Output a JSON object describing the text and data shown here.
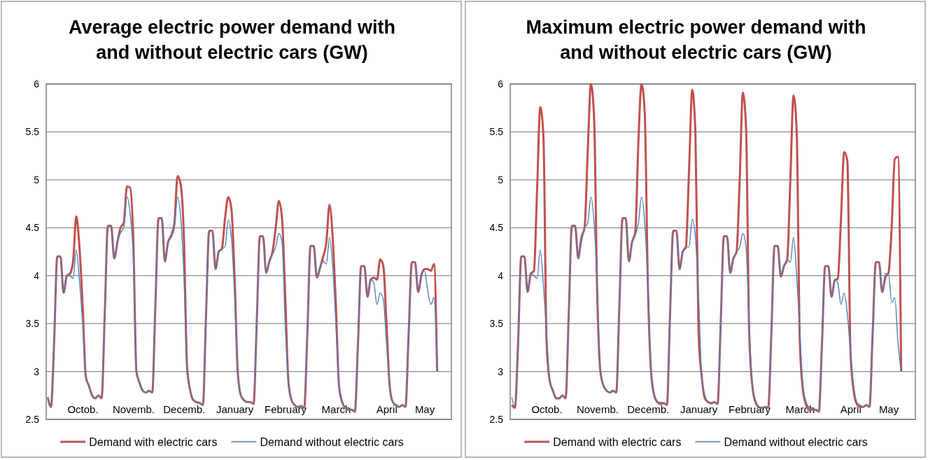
{
  "chart_data": [
    {
      "type": "line",
      "title": "Average electric power demand with and without electric cars (GW)",
      "categories": [
        null,
        null,
        null,
        null,
        null,
        null,
        null,
        null,
        null,
        null,
        null,
        "Octob.",
        null,
        null,
        null,
        null,
        null,
        null,
        null,
        null,
        null,
        null,
        null,
        null,
        null,
        null,
        null,
        "Novemb.",
        null,
        null,
        null,
        null,
        null,
        null,
        null,
        null,
        null,
        null,
        null,
        null,
        null,
        null,
        null,
        "Decemb.",
        null,
        null,
        null,
        null,
        null,
        null,
        null,
        null,
        null,
        null,
        null,
        null,
        null,
        null,
        null,
        "January",
        null,
        null,
        null,
        null,
        null,
        null,
        null,
        null,
        null,
        null,
        null,
        null,
        null,
        null,
        null,
        "February",
        null,
        null,
        null,
        null,
        null,
        null,
        null,
        null,
        null,
        null,
        null,
        null,
        null,
        null,
        null,
        "March",
        null,
        null,
        null,
        null,
        null,
        null,
        null,
        null,
        null,
        null,
        null,
        null,
        null,
        null,
        null,
        "April",
        null,
        null,
        null,
        null,
        null,
        null,
        null,
        null,
        null,
        null,
        null,
        "May",
        null,
        null,
        null,
        null
      ],
      "ylim": [
        2.5,
        6
      ],
      "yticks": [
        2.5,
        3,
        3.5,
        4,
        4.5,
        5,
        5.5,
        6
      ],
      "grid": "y",
      "legend": "bottom",
      "marker": "none",
      "line_style": "solid",
      "series": [
        {
          "name": "Demand with electric cars",
          "color": "#c0504d",
          "values": [
            2.73,
            2.63,
            3.3,
            4.2,
            4.2,
            3.82,
            4.0,
            4.02,
            4.15,
            4.62,
            4.3,
            3.7,
            2.95,
            2.85,
            2.75,
            2.72,
            2.75,
            2.72,
            3.6,
            4.52,
            4.52,
            4.18,
            4.35,
            4.5,
            4.55,
            4.93,
            4.92,
            4.4,
            3.0,
            2.88,
            2.8,
            2.78,
            2.8,
            2.78,
            3.7,
            4.6,
            4.6,
            4.15,
            4.35,
            4.42,
            4.55,
            5.04,
            4.95,
            4.4,
            3.05,
            2.8,
            2.7,
            2.68,
            2.67,
            2.65,
            3.6,
            4.47,
            4.47,
            4.07,
            4.25,
            4.28,
            4.6,
            4.82,
            4.7,
            4.0,
            3.0,
            2.75,
            2.7,
            2.68,
            2.68,
            2.66,
            3.5,
            4.41,
            4.41,
            4.03,
            4.15,
            4.25,
            4.5,
            4.78,
            4.6,
            3.8,
            2.9,
            2.7,
            2.65,
            2.63,
            2.64,
            2.62,
            3.4,
            4.31,
            4.31,
            3.98,
            4.08,
            4.2,
            4.35,
            4.74,
            4.4,
            3.7,
            2.85,
            2.68,
            2.62,
            2.6,
            2.6,
            2.58,
            3.3,
            4.1,
            4.1,
            3.78,
            3.96,
            3.98,
            3.96,
            4.17,
            4.1,
            3.5,
            2.85,
            2.68,
            2.65,
            2.63,
            2.65,
            2.63,
            3.4,
            4.14,
            4.14,
            3.83,
            4.0,
            4.07,
            4.07,
            4.05,
            4.12,
            3.0
          ]
        },
        {
          "name": "Demand without electric cars",
          "color": "#4f81bd",
          "values": [
            2.73,
            2.63,
            3.3,
            4.2,
            4.2,
            3.82,
            4.0,
            4.0,
            3.97,
            4.27,
            3.95,
            3.5,
            2.95,
            2.85,
            2.75,
            2.72,
            2.75,
            2.72,
            3.6,
            4.52,
            4.52,
            4.18,
            4.35,
            4.45,
            4.5,
            4.82,
            4.65,
            4.2,
            3.0,
            2.88,
            2.8,
            2.78,
            2.8,
            2.78,
            3.7,
            4.6,
            4.6,
            4.15,
            4.35,
            4.4,
            4.5,
            4.82,
            4.6,
            4.0,
            3.0,
            2.8,
            2.7,
            2.68,
            2.67,
            2.65,
            3.6,
            4.47,
            4.47,
            4.07,
            4.25,
            4.28,
            4.3,
            4.58,
            4.4,
            3.8,
            3.0,
            2.75,
            2.7,
            2.68,
            2.68,
            2.66,
            3.5,
            4.41,
            4.41,
            4.03,
            4.15,
            4.22,
            4.3,
            4.44,
            4.35,
            3.5,
            2.9,
            2.7,
            2.65,
            2.63,
            2.64,
            2.62,
            3.4,
            4.31,
            4.31,
            3.98,
            4.08,
            4.15,
            4.12,
            4.4,
            4.1,
            3.5,
            2.85,
            2.68,
            2.62,
            2.6,
            2.6,
            2.58,
            3.3,
            4.1,
            4.1,
            3.78,
            3.96,
            3.92,
            3.7,
            3.82,
            3.75,
            3.3,
            2.85,
            2.68,
            2.65,
            2.63,
            2.65,
            2.63,
            3.4,
            4.14,
            4.14,
            3.83,
            4.0,
            4.05,
            3.85,
            3.7,
            3.77,
            3.0
          ]
        }
      ]
    },
    {
      "type": "line",
      "title": "Maximum electric power demand with and without electric cars (GW)",
      "categories": [
        null,
        null,
        null,
        null,
        null,
        null,
        null,
        null,
        null,
        null,
        null,
        "Octob.",
        null,
        null,
        null,
        null,
        null,
        null,
        null,
        null,
        null,
        null,
        null,
        null,
        null,
        null,
        null,
        "Novemb.",
        null,
        null,
        null,
        null,
        null,
        null,
        null,
        null,
        null,
        null,
        null,
        null,
        null,
        null,
        null,
        "Decemb.",
        null,
        null,
        null,
        null,
        null,
        null,
        null,
        null,
        null,
        null,
        null,
        null,
        null,
        null,
        null,
        "January",
        null,
        null,
        null,
        null,
        null,
        null,
        null,
        null,
        null,
        null,
        null,
        null,
        null,
        null,
        null,
        "February",
        null,
        null,
        null,
        null,
        null,
        null,
        null,
        null,
        null,
        null,
        null,
        null,
        null,
        null,
        null,
        "March",
        null,
        null,
        null,
        null,
        null,
        null,
        null,
        null,
        null,
        null,
        null,
        null,
        null,
        null,
        null,
        "April",
        null,
        null,
        null,
        null,
        null,
        null,
        null,
        null,
        null,
        null,
        null,
        "May",
        null,
        null,
        null,
        null
      ],
      "ylim": [
        2.5,
        6
      ],
      "yticks": [
        2.5,
        3,
        3.5,
        4,
        4.5,
        5,
        5.5,
        6
      ],
      "grid": "y",
      "legend": "bottom",
      "marker": "none",
      "line_style": "solid",
      "series": [
        {
          "name": "Demand with electric cars",
          "color": "#c0504d",
          "values": [
            2.65,
            2.62,
            3.3,
            4.2,
            4.2,
            3.83,
            4.02,
            4.05,
            4.9,
            5.76,
            5.45,
            3.3,
            2.9,
            2.8,
            2.72,
            2.72,
            2.75,
            2.72,
            3.6,
            4.52,
            4.52,
            4.18,
            4.4,
            4.5,
            5.3,
            6.0,
            5.65,
            3.8,
            3.0,
            2.85,
            2.8,
            2.78,
            2.8,
            2.78,
            3.7,
            4.6,
            4.6,
            4.15,
            4.35,
            4.45,
            5.4,
            6.0,
            5.7,
            3.9,
            3.0,
            2.75,
            2.68,
            2.66,
            2.67,
            2.65,
            3.6,
            4.47,
            4.47,
            4.07,
            4.25,
            4.3,
            5.1,
            5.94,
            5.5,
            3.4,
            2.95,
            2.72,
            2.68,
            2.67,
            2.68,
            2.66,
            3.5,
            4.41,
            4.41,
            4.03,
            4.18,
            4.25,
            5.0,
            5.91,
            5.55,
            3.4,
            2.85,
            2.68,
            2.63,
            2.62,
            2.63,
            2.62,
            3.4,
            4.31,
            4.31,
            3.99,
            4.1,
            4.17,
            5.0,
            5.88,
            5.5,
            3.3,
            2.8,
            2.65,
            2.6,
            2.6,
            2.6,
            2.58,
            3.3,
            4.1,
            4.1,
            3.78,
            3.95,
            3.97,
            4.6,
            5.29,
            5.2,
            3.2,
            2.8,
            2.66,
            2.63,
            2.63,
            2.65,
            2.63,
            3.4,
            4.14,
            4.14,
            3.83,
            3.98,
            4.03,
            4.5,
            5.22,
            5.24,
            3.0
          ]
        },
        {
          "name": "Demand without electric cars",
          "color": "#4f81bd",
          "values": [
            2.73,
            2.63,
            3.2,
            4.2,
            4.2,
            3.83,
            4.02,
            4.0,
            3.97,
            4.27,
            3.9,
            3.4,
            2.9,
            2.8,
            2.73,
            2.72,
            2.75,
            2.72,
            3.6,
            4.52,
            4.52,
            4.18,
            4.35,
            4.5,
            4.55,
            4.82,
            4.55,
            3.9,
            3.0,
            2.85,
            2.8,
            2.78,
            2.8,
            2.78,
            3.7,
            4.6,
            4.6,
            4.15,
            4.35,
            4.42,
            4.55,
            4.82,
            4.55,
            3.9,
            3.0,
            2.75,
            2.68,
            2.68,
            2.67,
            2.65,
            3.6,
            4.47,
            4.47,
            4.07,
            4.25,
            4.3,
            4.3,
            4.59,
            4.4,
            3.8,
            2.95,
            2.75,
            2.68,
            2.66,
            2.68,
            2.66,
            3.5,
            4.41,
            4.41,
            4.03,
            4.18,
            4.25,
            4.3,
            4.44,
            4.3,
            3.5,
            2.85,
            2.7,
            2.63,
            2.62,
            2.63,
            2.62,
            3.4,
            4.31,
            4.31,
            3.99,
            4.1,
            4.17,
            4.14,
            4.4,
            4.0,
            3.4,
            2.85,
            2.68,
            2.62,
            2.6,
            2.6,
            2.58,
            3.3,
            4.1,
            4.1,
            3.78,
            3.96,
            3.92,
            3.7,
            3.82,
            3.6,
            3.2,
            2.85,
            2.68,
            2.65,
            2.63,
            2.65,
            2.63,
            3.4,
            4.14,
            4.14,
            3.83,
            4.02,
            4.02,
            3.72,
            3.77,
            3.3,
            3.0
          ]
        }
      ]
    }
  ]
}
